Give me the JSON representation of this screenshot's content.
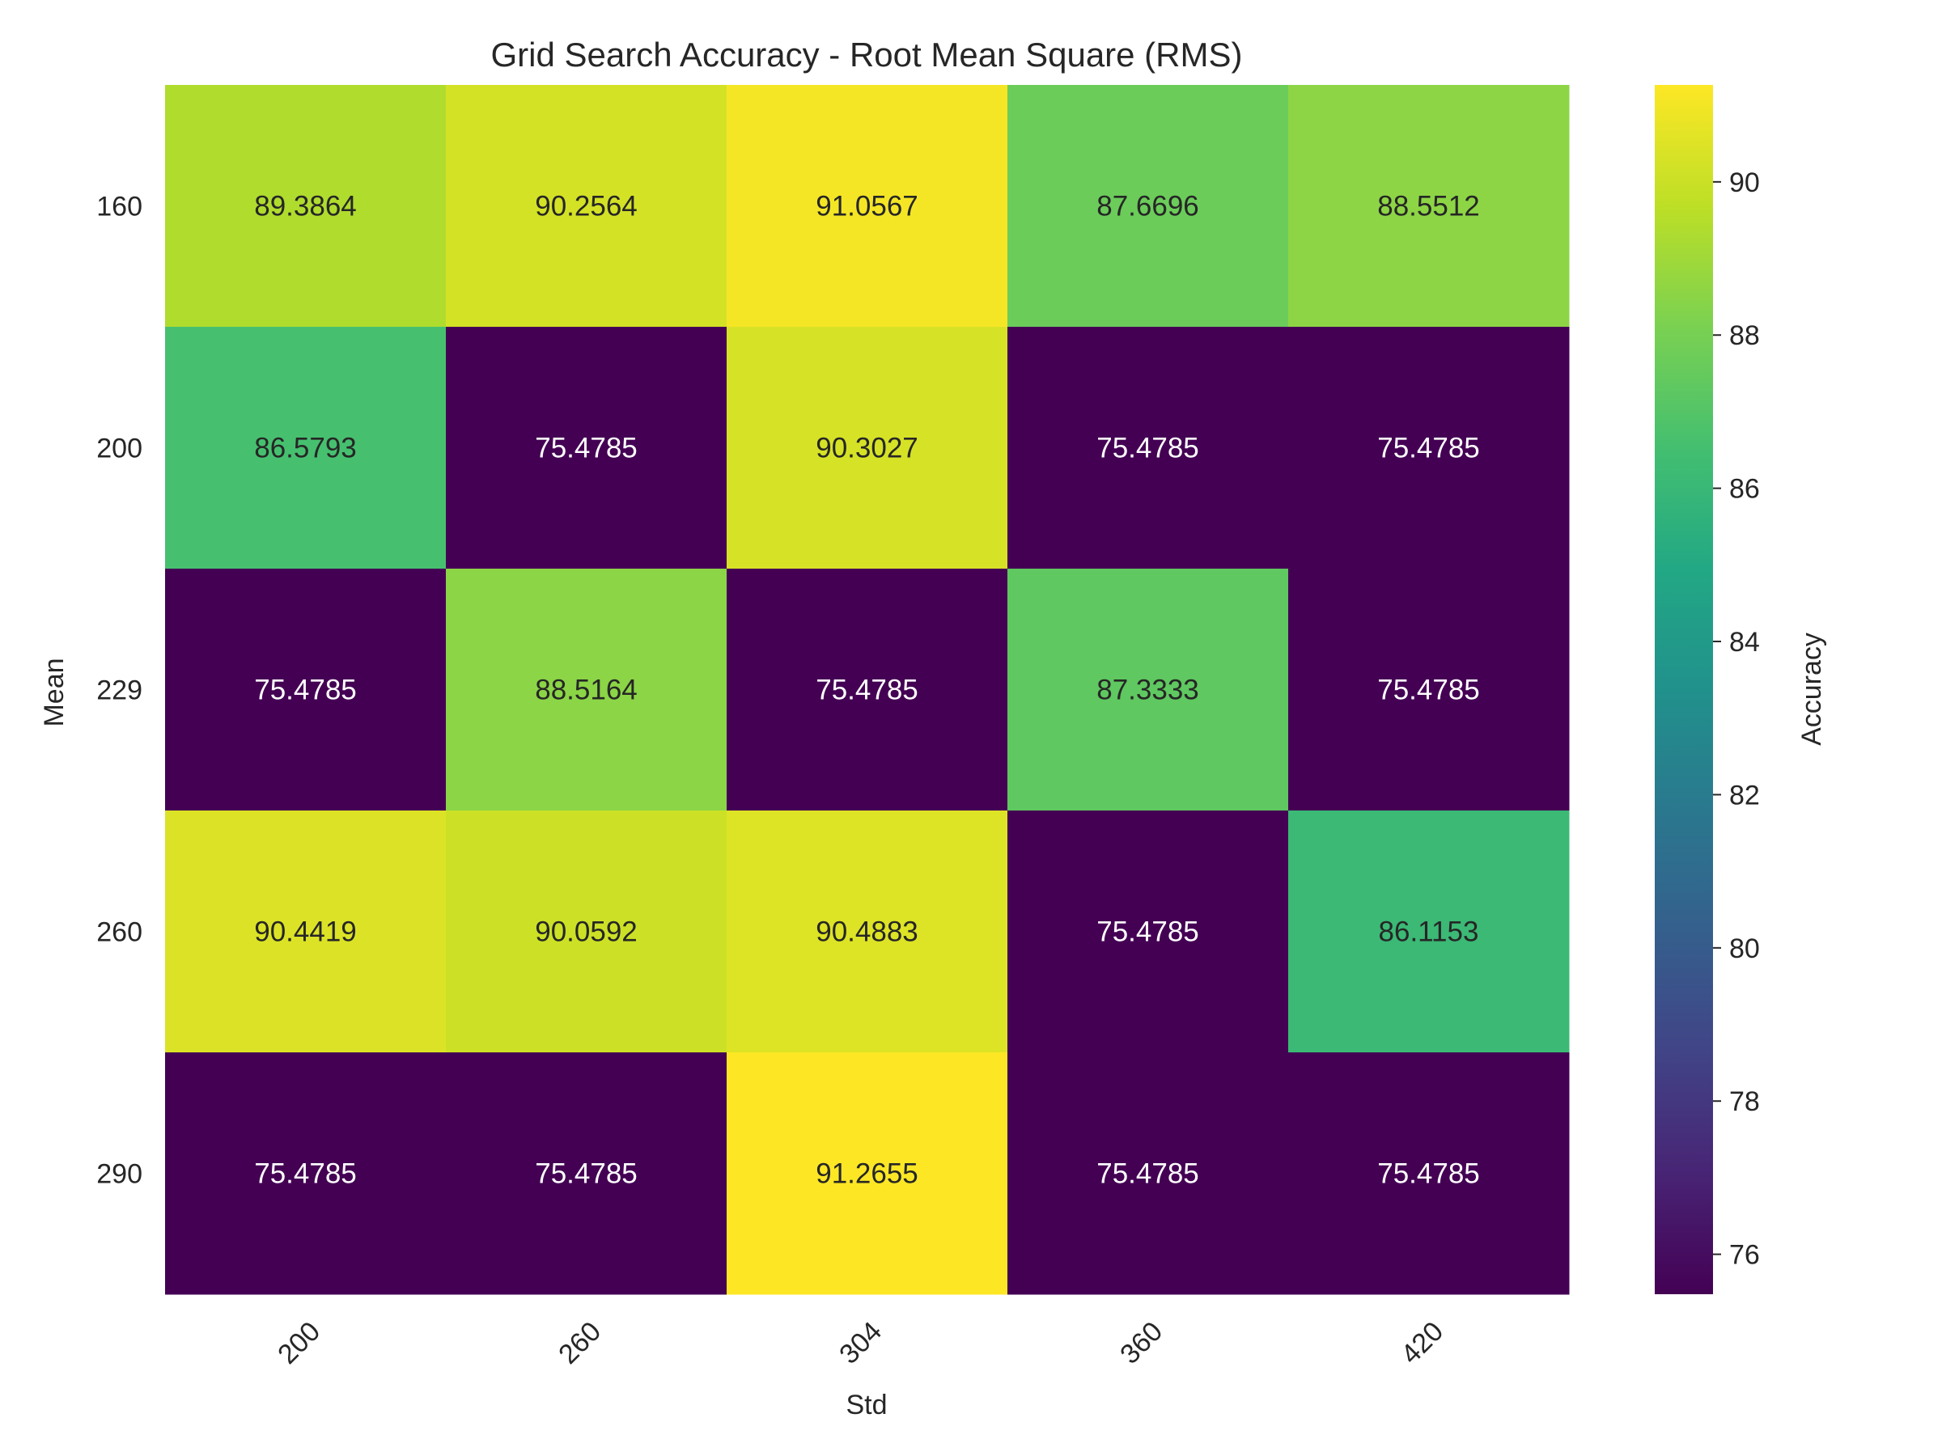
{
  "chart_data": {
    "type": "heatmap",
    "title": "Grid Search Accuracy - Root Mean Square (RMS)",
    "xlabel": "Std",
    "ylabel": "Mean",
    "x_categories": [
      "200",
      "260",
      "304",
      "360",
      "420"
    ],
    "y_categories": [
      "160",
      "200",
      "229",
      "260",
      "290"
    ],
    "values": [
      [
        89.3864,
        90.2564,
        91.0567,
        87.6696,
        88.5512
      ],
      [
        86.5793,
        75.4785,
        90.3027,
        75.4785,
        75.4785
      ],
      [
        75.4785,
        88.5164,
        75.4785,
        87.3333,
        75.4785
      ],
      [
        90.4419,
        90.0592,
        90.4883,
        75.4785,
        86.1153
      ],
      [
        75.4785,
        75.4785,
        91.2655,
        75.4785,
        75.4785
      ]
    ],
    "colormap": "viridis",
    "colorbar": {
      "label": "Accuracy",
      "min": 75.4785,
      "max": 91.2655,
      "ticks": [
        "76",
        "78",
        "80",
        "82",
        "84",
        "86",
        "88",
        "90"
      ]
    },
    "grid": false,
    "legend": "colorbar-right"
  }
}
